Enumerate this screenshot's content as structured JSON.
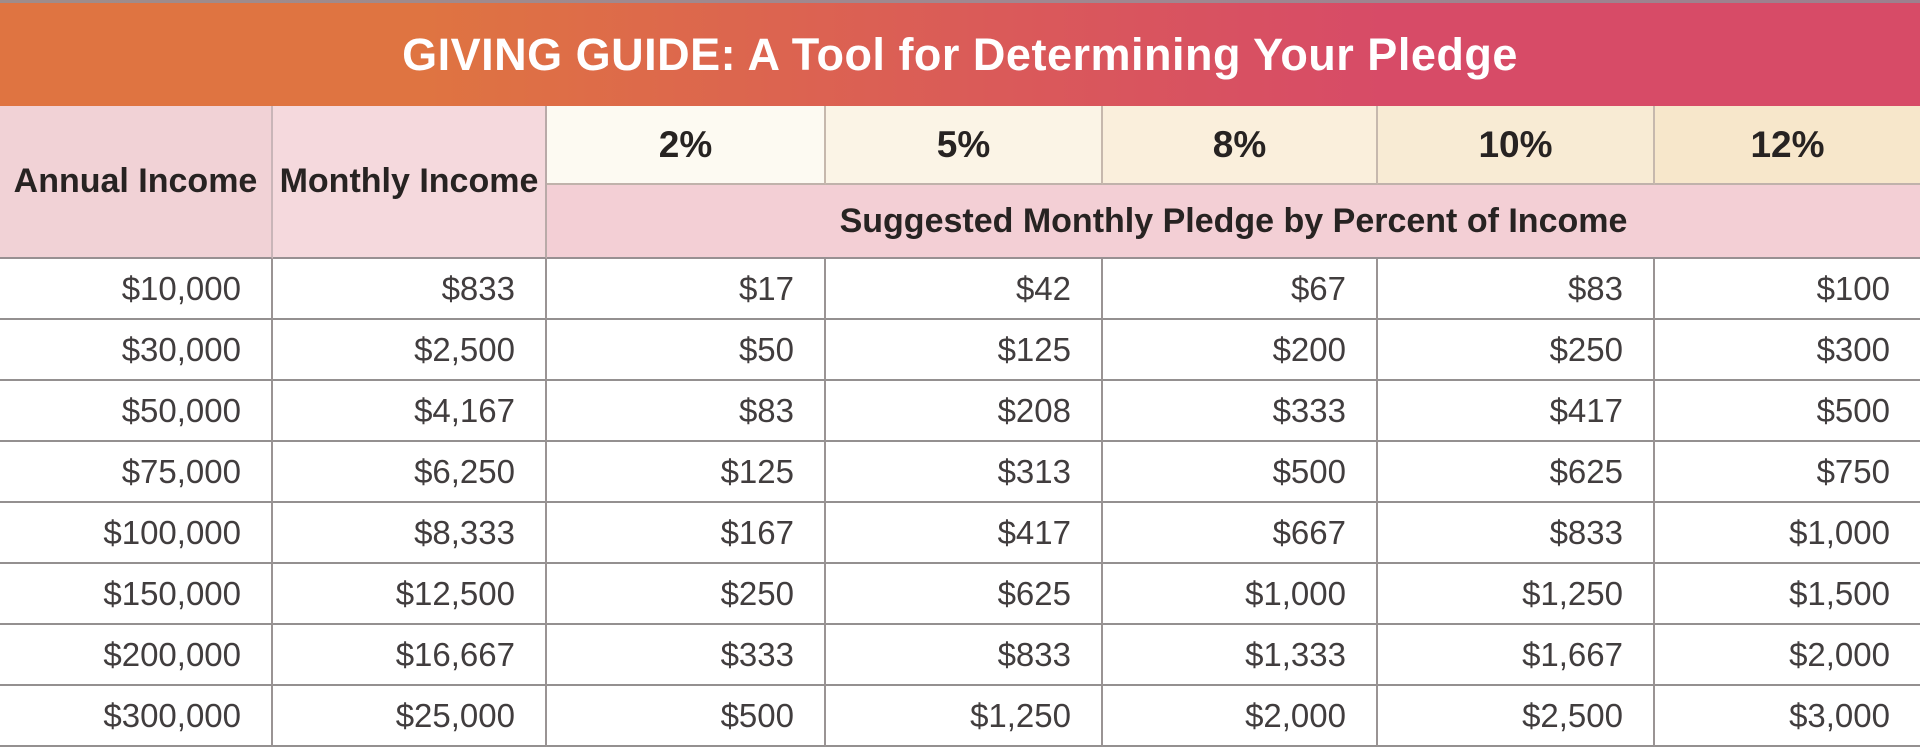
{
  "banner": {
    "title": "GIVING GUIDE: A Tool for Determining Your Pledge",
    "gradient_left": "#DF7441",
    "gradient_right": "#D74B67",
    "text_color": "#FFFFFF"
  },
  "table": {
    "row_header_labels": {
      "annual": "Annual Income",
      "monthly": "Monthly Income"
    },
    "percent_headers": [
      "2%",
      "5%",
      "8%",
      "10%",
      "12%"
    ],
    "subheader": "Suggested Monthly Pledge by Percent of Income",
    "percent_cell_colors": [
      "#FDFAF2",
      "#FBF4E6",
      "#FAEFDC",
      "#F8EBD4",
      "#F7E7CB"
    ],
    "header_pink": "#F1D2D6",
    "subheader_pink": "#F3CFD5",
    "rows": [
      [
        "$10,000",
        "$833",
        "$17",
        "$42",
        "$67",
        "$83",
        "$100"
      ],
      [
        "$30,000",
        "$2,500",
        "$50",
        "$125",
        "$200",
        "$250",
        "$300"
      ],
      [
        "$50,000",
        "$4,167",
        "$83",
        "$208",
        "$333",
        "$417",
        "$500"
      ],
      [
        "$75,000",
        "$6,250",
        "$125",
        "$313",
        "$500",
        "$625",
        "$750"
      ],
      [
        "$100,000",
        "$8,333",
        "$167",
        "$417",
        "$667",
        "$833",
        "$1,000"
      ],
      [
        "$150,000",
        "$12,500",
        "$250",
        "$625",
        "$1,000",
        "$1,250",
        "$1,500"
      ],
      [
        "$200,000",
        "$16,667",
        "$333",
        "$833",
        "$1,333",
        "$1,667",
        "$2,000"
      ],
      [
        "$300,000",
        "$25,000",
        "$500",
        "$1,250",
        "$2,000",
        "$2,500",
        "$3,000"
      ]
    ]
  },
  "chart_data": {
    "type": "table",
    "title": "GIVING GUIDE: A Tool for Determining Your Pledge",
    "subtitle": "Suggested Monthly Pledge by Percent of Income",
    "columns": [
      "Annual Income",
      "Monthly Income",
      "2%",
      "5%",
      "8%",
      "10%",
      "12%"
    ],
    "rows": [
      [
        "$10,000",
        "$833",
        "$17",
        "$42",
        "$67",
        "$83",
        "$100"
      ],
      [
        "$30,000",
        "$2,500",
        "$50",
        "$125",
        "$200",
        "$250",
        "$300"
      ],
      [
        "$50,000",
        "$4,167",
        "$83",
        "$208",
        "$333",
        "$417",
        "$500"
      ],
      [
        "$75,000",
        "$6,250",
        "$125",
        "$313",
        "$500",
        "$625",
        "$750"
      ],
      [
        "$100,000",
        "$8,333",
        "$167",
        "$417",
        "$667",
        "$833",
        "$1,000"
      ],
      [
        "$150,000",
        "$12,500",
        "$250",
        "$625",
        "$1,000",
        "$1,250",
        "$1,500"
      ],
      [
        "$200,000",
        "$16,667",
        "$333",
        "$833",
        "$1,333",
        "$1,667",
        "$2,000"
      ],
      [
        "$300,000",
        "$25,000",
        "$500",
        "$1,250",
        "$2,000",
        "$2,500",
        "$3,000"
      ]
    ]
  }
}
